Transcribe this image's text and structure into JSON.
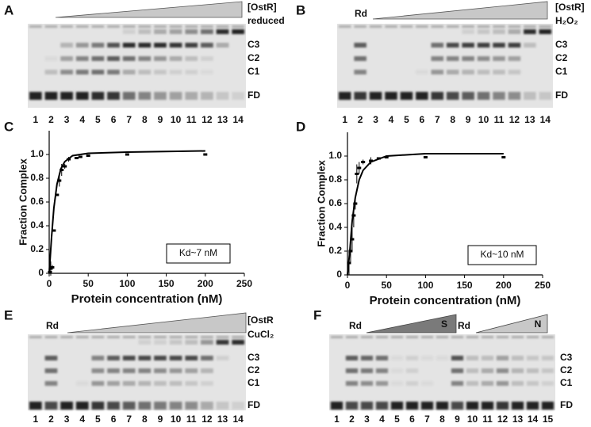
{
  "gels": [
    {
      "letter": "A",
      "header": [
        "[OstR]",
        "reduced"
      ],
      "bands": [
        "C3",
        "C2",
        "C1",
        "FD"
      ],
      "lanes": [
        1,
        2,
        3,
        4,
        5,
        6,
        7,
        8,
        9,
        10,
        11,
        12,
        13,
        14
      ]
    },
    {
      "letter": "B",
      "header": [
        "[OstR]",
        "H₂O₂"
      ],
      "marker": [
        "Rd"
      ],
      "bands": [
        "C3",
        "C2",
        "C1",
        "FD"
      ],
      "lanes": [
        1,
        2,
        3,
        4,
        5,
        6,
        7,
        8,
        9,
        10,
        11,
        12,
        13,
        14
      ]
    },
    {
      "letter": "E",
      "header": [
        "[OstR",
        "CuCl₂"
      ],
      "marker": [
        "Rd"
      ],
      "bands": [
        "C3",
        "C2",
        "C1",
        "FD"
      ],
      "lanes": [
        1,
        2,
        3,
        4,
        5,
        6,
        7,
        8,
        9,
        10,
        11,
        12,
        13,
        14
      ]
    },
    {
      "letter": "F",
      "marker": [
        "Rd",
        "Rd"
      ],
      "ramps": [
        "S",
        "N"
      ],
      "bands": [
        "C3",
        "C2",
        "C1",
        "FD"
      ],
      "lanes": [
        1,
        2,
        3,
        4,
        5,
        6,
        7,
        8,
        9,
        10,
        11,
        12,
        13,
        14,
        15
      ]
    }
  ],
  "chart_data": [
    {
      "type": "scatter",
      "label": "C",
      "xlabel": "Protein concentration (nM)",
      "ylabel": "Fraction Complex",
      "annotation": "Kd~7 nM",
      "x": [
        1,
        2,
        4,
        6,
        10,
        13,
        16,
        20,
        25,
        35,
        40,
        50,
        100,
        200
      ],
      "values": [
        0.01,
        0.04,
        0.05,
        0.36,
        0.66,
        0.78,
        0.87,
        0.9,
        0.96,
        0.97,
        0.98,
        0.99,
        1.0,
        1.0
      ],
      "errors": [
        0.01,
        0.06,
        0.02,
        0.01,
        0.01,
        0.05,
        0.05,
        0.02,
        0.02,
        0.01,
        0.01,
        0.01,
        0.01,
        0.01
      ],
      "fit": {
        "x": [
          0,
          3,
          6,
          10,
          15,
          20,
          30,
          50,
          100,
          200
        ],
        "values": [
          0,
          0.3,
          0.55,
          0.75,
          0.88,
          0.94,
          0.99,
          1.01,
          1.02,
          1.03
        ]
      },
      "xlim": [
        0,
        250
      ],
      "ylim": [
        0,
        1.2
      ],
      "xticks": [
        0,
        50,
        100,
        150,
        200,
        250
      ],
      "yticks": [
        0,
        0.2,
        0.4,
        0.6,
        0.8,
        {
          "value": 1,
          "label": "1.0"
        }
      ],
      "color": "#000000"
    },
    {
      "type": "scatter",
      "label": "D",
      "xlabel": "Protein concentration (nM)",
      "ylabel": "Fraction Complex",
      "annotation": "Kd~10 nM",
      "x": [
        2,
        4,
        6,
        8,
        10,
        12,
        15,
        20,
        30,
        40,
        50,
        100,
        200
      ],
      "values": [
        0.1,
        0.2,
        0.3,
        0.5,
        0.6,
        0.85,
        0.9,
        0.95,
        0.96,
        0.98,
        0.99,
        0.99,
        0.99
      ],
      "errors": [
        0.1,
        0.1,
        0.1,
        0.1,
        0.05,
        0.08,
        0.05,
        0.02,
        0.03,
        0.01,
        0.01,
        0.01,
        0.01
      ],
      "fit": {
        "x": [
          0,
          3,
          6,
          10,
          15,
          20,
          30,
          50,
          100,
          200
        ],
        "values": [
          0,
          0.2,
          0.45,
          0.65,
          0.8,
          0.88,
          0.95,
          1.0,
          1.02,
          1.02
        ]
      },
      "xlim": [
        0,
        250
      ],
      "ylim": [
        0,
        1.2
      ],
      "xticks": [
        0,
        50,
        100,
        150,
        200,
        250
      ],
      "yticks": [
        0,
        0.2,
        0.4,
        0.6,
        0.8,
        {
          "value": 1,
          "label": "1.0"
        }
      ],
      "color": "#000000"
    }
  ]
}
